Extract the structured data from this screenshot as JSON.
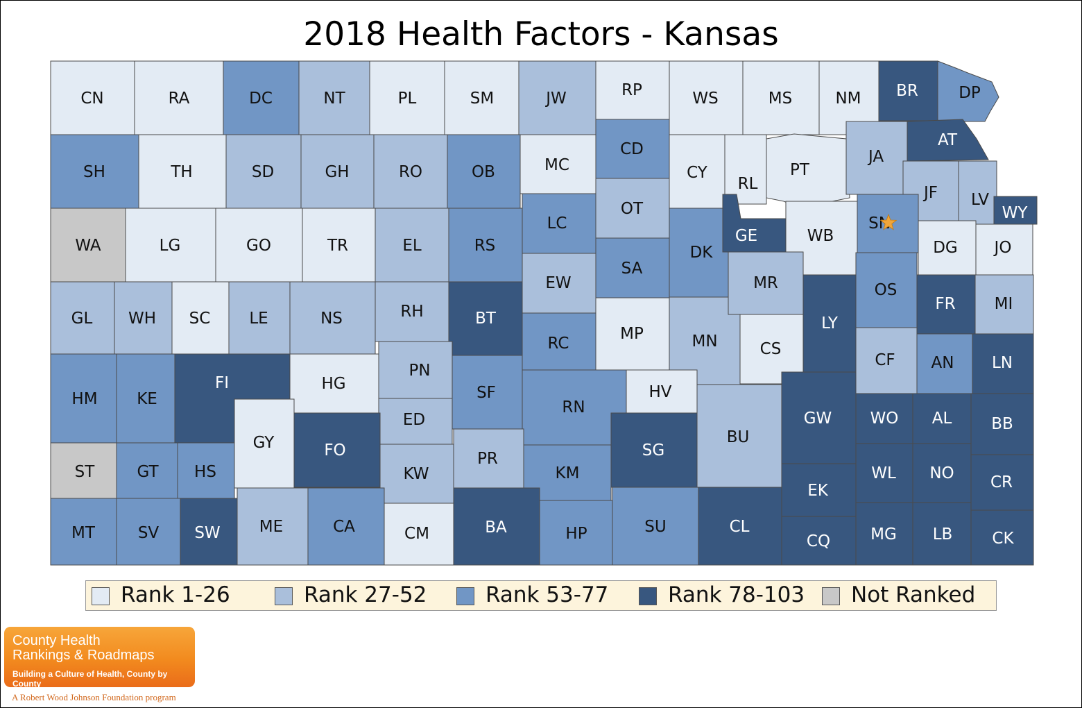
{
  "title": "2018 Health Factors - Kansas",
  "colors": {
    "rank_1_26": "#e3ebf4",
    "rank_27_52": "#aabfdb",
    "rank_53_77": "#7196c5",
    "rank_78_103": "#38577f",
    "not_ranked": "#c8c8c8",
    "star": "#f0a63a"
  },
  "legend": [
    {
      "label": "Rank 1-26",
      "class": "rank_1_26"
    },
    {
      "label": "Rank 27-52",
      "class": "rank_27_52"
    },
    {
      "label": "Rank 53-77",
      "class": "rank_53_77"
    },
    {
      "label": "Rank 78-103",
      "class": "rank_78_103"
    },
    {
      "label": "Not Ranked",
      "class": "not_ranked"
    }
  ],
  "capital_marker": {
    "county": "SN",
    "icon": "star-icon"
  },
  "counties": [
    {
      "abbr": "CN",
      "class": "rank_1_26"
    },
    {
      "abbr": "RA",
      "class": "rank_1_26"
    },
    {
      "abbr": "DC",
      "class": "rank_53_77"
    },
    {
      "abbr": "NT",
      "class": "rank_27_52"
    },
    {
      "abbr": "PL",
      "class": "rank_1_26"
    },
    {
      "abbr": "SM",
      "class": "rank_1_26"
    },
    {
      "abbr": "JW",
      "class": "rank_27_52"
    },
    {
      "abbr": "RP",
      "class": "rank_1_26"
    },
    {
      "abbr": "WS",
      "class": "rank_1_26"
    },
    {
      "abbr": "MS",
      "class": "rank_1_26"
    },
    {
      "abbr": "NM",
      "class": "rank_1_26"
    },
    {
      "abbr": "BR",
      "class": "rank_78_103"
    },
    {
      "abbr": "DP",
      "class": "rank_53_77"
    },
    {
      "abbr": "SH",
      "class": "rank_53_77"
    },
    {
      "abbr": "TH",
      "class": "rank_1_26"
    },
    {
      "abbr": "SD",
      "class": "rank_27_52"
    },
    {
      "abbr": "GH",
      "class": "rank_27_52"
    },
    {
      "abbr": "RO",
      "class": "rank_27_52"
    },
    {
      "abbr": "OB",
      "class": "rank_53_77"
    },
    {
      "abbr": "MC",
      "class": "rank_1_26"
    },
    {
      "abbr": "CD",
      "class": "rank_53_77"
    },
    {
      "abbr": "CY",
      "class": "rank_1_26"
    },
    {
      "abbr": "RL",
      "class": "rank_1_26"
    },
    {
      "abbr": "PT",
      "class": "rank_1_26"
    },
    {
      "abbr": "JA",
      "class": "rank_27_52"
    },
    {
      "abbr": "AT",
      "class": "rank_78_103"
    },
    {
      "abbr": "JF",
      "class": "rank_27_52"
    },
    {
      "abbr": "LV",
      "class": "rank_27_52"
    },
    {
      "abbr": "WY",
      "class": "rank_78_103"
    },
    {
      "abbr": "WA",
      "class": "not_ranked"
    },
    {
      "abbr": "LG",
      "class": "rank_1_26"
    },
    {
      "abbr": "GO",
      "class": "rank_1_26"
    },
    {
      "abbr": "TR",
      "class": "rank_1_26"
    },
    {
      "abbr": "EL",
      "class": "rank_27_52"
    },
    {
      "abbr": "RS",
      "class": "rank_53_77"
    },
    {
      "abbr": "LC",
      "class": "rank_53_77"
    },
    {
      "abbr": "OT",
      "class": "rank_27_52"
    },
    {
      "abbr": "SA",
      "class": "rank_53_77"
    },
    {
      "abbr": "DK",
      "class": "rank_53_77"
    },
    {
      "abbr": "GE",
      "class": "rank_78_103"
    },
    {
      "abbr": "WB",
      "class": "rank_1_26"
    },
    {
      "abbr": "SN",
      "class": "rank_53_77"
    },
    {
      "abbr": "DG",
      "class": "rank_1_26"
    },
    {
      "abbr": "JO",
      "class": "rank_1_26"
    },
    {
      "abbr": "GL",
      "class": "rank_27_52"
    },
    {
      "abbr": "WH",
      "class": "rank_27_52"
    },
    {
      "abbr": "SC",
      "class": "rank_1_26"
    },
    {
      "abbr": "LE",
      "class": "rank_27_52"
    },
    {
      "abbr": "NS",
      "class": "rank_27_52"
    },
    {
      "abbr": "RH",
      "class": "rank_27_52"
    },
    {
      "abbr": "BT",
      "class": "rank_78_103"
    },
    {
      "abbr": "EW",
      "class": "rank_27_52"
    },
    {
      "abbr": "MP",
      "class": "rank_1_26"
    },
    {
      "abbr": "MN",
      "class": "rank_27_52"
    },
    {
      "abbr": "MR",
      "class": "rank_27_52"
    },
    {
      "abbr": "CS",
      "class": "rank_1_26"
    },
    {
      "abbr": "LY",
      "class": "rank_78_103"
    },
    {
      "abbr": "OS",
      "class": "rank_53_77"
    },
    {
      "abbr": "FR",
      "class": "rank_78_103"
    },
    {
      "abbr": "MI",
      "class": "rank_27_52"
    },
    {
      "abbr": "RC",
      "class": "rank_53_77"
    },
    {
      "abbr": "HM",
      "class": "rank_53_77"
    },
    {
      "abbr": "KE",
      "class": "rank_53_77"
    },
    {
      "abbr": "FI",
      "class": "rank_78_103"
    },
    {
      "abbr": "HG",
      "class": "rank_1_26"
    },
    {
      "abbr": "PN",
      "class": "rank_27_52"
    },
    {
      "abbr": "SF",
      "class": "rank_53_77"
    },
    {
      "abbr": "RN",
      "class": "rank_53_77"
    },
    {
      "abbr": "HV",
      "class": "rank_1_26"
    },
    {
      "abbr": "BU",
      "class": "rank_27_52"
    },
    {
      "abbr": "GW",
      "class": "rank_78_103"
    },
    {
      "abbr": "WO",
      "class": "rank_78_103"
    },
    {
      "abbr": "AL",
      "class": "rank_78_103"
    },
    {
      "abbr": "AN",
      "class": "rank_53_77"
    },
    {
      "abbr": "CF",
      "class": "rank_27_52"
    },
    {
      "abbr": "LN",
      "class": "rank_78_103"
    },
    {
      "abbr": "ED",
      "class": "rank_27_52"
    },
    {
      "abbr": "ST",
      "class": "not_ranked"
    },
    {
      "abbr": "GT",
      "class": "rank_53_77"
    },
    {
      "abbr": "HS",
      "class": "rank_53_77"
    },
    {
      "abbr": "GY",
      "class": "rank_1_26"
    },
    {
      "abbr": "FO",
      "class": "rank_78_103"
    },
    {
      "abbr": "KW",
      "class": "rank_27_52"
    },
    {
      "abbr": "PR",
      "class": "rank_27_52"
    },
    {
      "abbr": "KM",
      "class": "rank_53_77"
    },
    {
      "abbr": "SG",
      "class": "rank_78_103"
    },
    {
      "abbr": "EK",
      "class": "rank_78_103"
    },
    {
      "abbr": "WL",
      "class": "rank_78_103"
    },
    {
      "abbr": "NO",
      "class": "rank_78_103"
    },
    {
      "abbr": "BB",
      "class": "rank_78_103"
    },
    {
      "abbr": "CR",
      "class": "rank_78_103"
    },
    {
      "abbr": "MT",
      "class": "rank_53_77"
    },
    {
      "abbr": "SV",
      "class": "rank_53_77"
    },
    {
      "abbr": "SW",
      "class": "rank_78_103"
    },
    {
      "abbr": "ME",
      "class": "rank_27_52"
    },
    {
      "abbr": "CA",
      "class": "rank_53_77"
    },
    {
      "abbr": "CM",
      "class": "rank_1_26"
    },
    {
      "abbr": "BA",
      "class": "rank_78_103"
    },
    {
      "abbr": "HP",
      "class": "rank_53_77"
    },
    {
      "abbr": "SU",
      "class": "rank_53_77"
    },
    {
      "abbr": "CL",
      "class": "rank_78_103"
    },
    {
      "abbr": "CQ",
      "class": "rank_78_103"
    },
    {
      "abbr": "MG",
      "class": "rank_78_103"
    },
    {
      "abbr": "LB",
      "class": "rank_78_103"
    },
    {
      "abbr": "CK",
      "class": "rank_78_103"
    }
  ],
  "logo": {
    "line1": "County Health",
    "line2": "Rankings & Roadmaps",
    "tagline": "Building a Culture of Health, County by County",
    "sub": "A Robert Wood Johnson Foundation program"
  }
}
